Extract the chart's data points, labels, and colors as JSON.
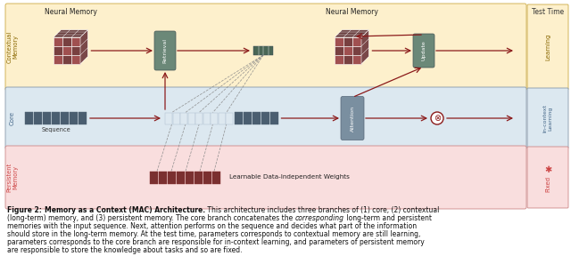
{
  "bg_color": "#ffffff",
  "fig_width": 6.4,
  "fig_height": 2.88,
  "band_colors": {
    "contextual": "#fdf0cc",
    "core": "#dce8f0",
    "persistent": "#f9dede"
  },
  "arrow_color": "#8b1a1a",
  "caption_lines": [
    [
      [
        "Figure 2: ",
        "bold"
      ],
      [
        "Memory as a Context (MAC) Architecture.",
        "bold"
      ],
      [
        " This architecture includes three branches of (1) core, (2) contextual",
        "normal"
      ]
    ],
    [
      [
        "(long-term) memory, and (3) persistent memory. The core branch concatenates the ",
        "normal"
      ],
      [
        "corresponding",
        "italic"
      ],
      [
        " long-term and persistent",
        "normal"
      ]
    ],
    [
      [
        "memories with the input sequence. Next, attention performs on the sequence and decides what part of the information",
        "normal"
      ]
    ],
    [
      [
        "should store in the long-term memory. At the test time, parameters corresponds to contextual memory are still learning,",
        "normal"
      ]
    ],
    [
      [
        "parameters corresponds to the core branch are responsible for in-context learning, and parameters of persistent memory",
        "normal"
      ]
    ],
    [
      [
        "are responsible to store the knowledge about tasks and so are fixed.",
        "normal"
      ]
    ]
  ]
}
